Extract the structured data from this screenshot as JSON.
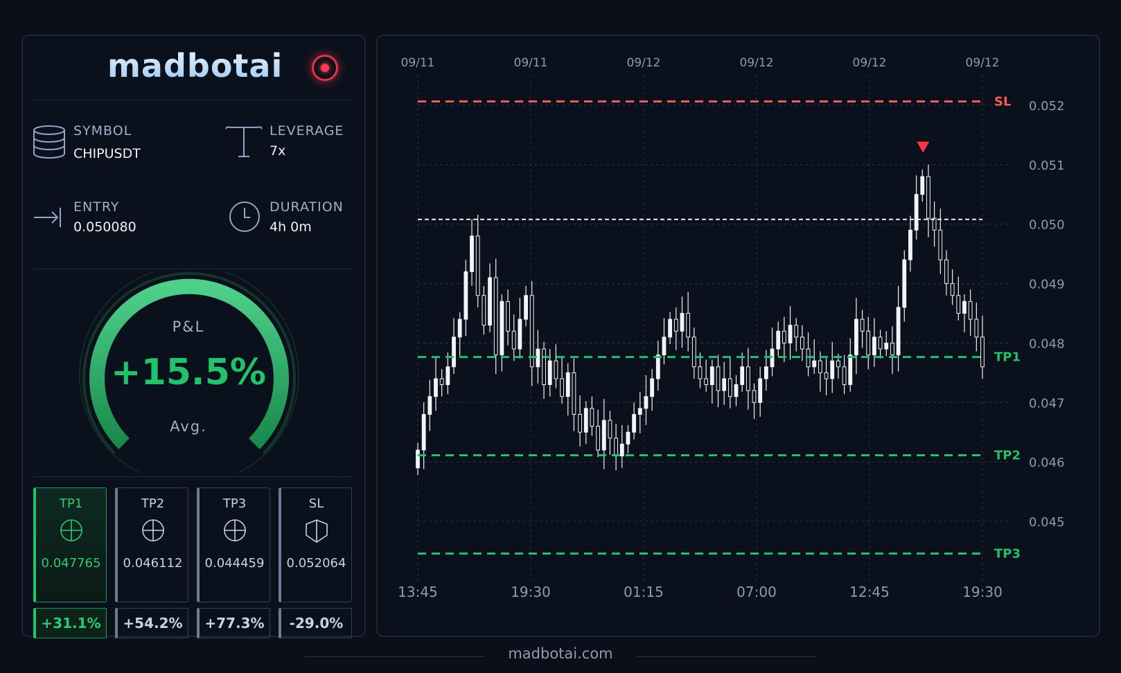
{
  "brand": {
    "name": "madbotai"
  },
  "stats": {
    "symbol": {
      "label": "SYMBOL",
      "value": "CHIPUSDT",
      "icon": "database-icon"
    },
    "leverage": {
      "label": "LEVERAGE",
      "value": "7x",
      "icon": "lever-icon"
    },
    "entry": {
      "label": "ENTRY",
      "value": "0.050080",
      "icon": "arrow-to-line-icon"
    },
    "duration": {
      "label": "DURATION",
      "value": "4h 0m",
      "icon": "clock-icon"
    }
  },
  "gauge": {
    "label": "P&L",
    "value": "+15.5%",
    "sublabel": "Avg.",
    "fill_fraction": 1.0
  },
  "targets": [
    {
      "name": "TP1",
      "price": "0.047765",
      "pnl": "+31.1%",
      "icon": "crosshair-icon",
      "active": true
    },
    {
      "name": "TP2",
      "price": "0.046112",
      "pnl": "+54.2%",
      "icon": "crosshair-icon",
      "active": false
    },
    {
      "name": "TP3",
      "price": "0.044459",
      "pnl": "+77.3%",
      "icon": "crosshair-icon",
      "active": false
    },
    {
      "name": "SL",
      "price": "0.052064",
      "pnl": "-29.0%",
      "icon": "shield-icon",
      "active": false
    }
  ],
  "colors": {
    "accent": "#22c26a",
    "sl": "#ff5a5a",
    "entry": "#e6e9ef",
    "candle": "#f2f4f7",
    "marker": "#ff3344"
  },
  "chart_data": {
    "type": "candlestick",
    "top_dates": [
      "09/11",
      "09/11",
      "09/12",
      "09/12",
      "09/12",
      "09/12"
    ],
    "x_ticks": [
      "13:45",
      "19:30",
      "01:15",
      "07:00",
      "12:45",
      "19:30"
    ],
    "y_ticks": [
      "0.052",
      "0.051",
      "0.050",
      "0.049",
      "0.048",
      "0.047",
      "0.046",
      "0.045"
    ],
    "ylim": [
      0.0444,
      0.0525
    ],
    "levels": [
      {
        "name": "SL",
        "value": 0.052064,
        "color": "#ff5a5a"
      },
      {
        "name": "",
        "value": 0.05008,
        "color": "#e6e9ef"
      },
      {
        "name": "TP1",
        "value": 0.047765,
        "color": "#22c26a"
      },
      {
        "name": "TP2",
        "value": 0.046112,
        "color": "#22c26a"
      },
      {
        "name": "TP3",
        "value": 0.044459,
        "color": "#22c26a"
      }
    ],
    "close_path": [
      0.0462,
      0.0468,
      0.0471,
      0.0474,
      0.0473,
      0.0476,
      0.0481,
      0.0484,
      0.0492,
      0.0498,
      0.0488,
      0.0483,
      0.0491,
      0.0478,
      0.0487,
      0.0482,
      0.0479,
      0.0484,
      0.0488,
      0.0476,
      0.0479,
      0.0473,
      0.0477,
      0.0474,
      0.0471,
      0.0475,
      0.0468,
      0.0465,
      0.0469,
      0.0466,
      0.0462,
      0.0467,
      0.0464,
      0.0461,
      0.0463,
      0.0465,
      0.0468,
      0.0469,
      0.0471,
      0.0474,
      0.0478,
      0.0481,
      0.0484,
      0.0482,
      0.0485,
      0.0481,
      0.0476,
      0.0474,
      0.0473,
      0.0476,
      0.0472,
      0.0474,
      0.0471,
      0.0473,
      0.0476,
      0.0472,
      0.047,
      0.0474,
      0.0476,
      0.0479,
      0.0482,
      0.048,
      0.0483,
      0.0481,
      0.0479,
      0.0476,
      0.0477,
      0.0475,
      0.0474,
      0.0477,
      0.0476,
      0.0473,
      0.0478,
      0.0484,
      0.0482,
      0.0478,
      0.0481,
      0.0479,
      0.048,
      0.0478,
      0.0486,
      0.0494,
      0.0499,
      0.0505,
      0.0508,
      0.0501,
      0.0499,
      0.0494,
      0.049,
      0.0488,
      0.0485,
      0.0487,
      0.0484,
      0.0481,
      0.0476
    ]
  },
  "footer": {
    "site": "madbotai.com"
  }
}
